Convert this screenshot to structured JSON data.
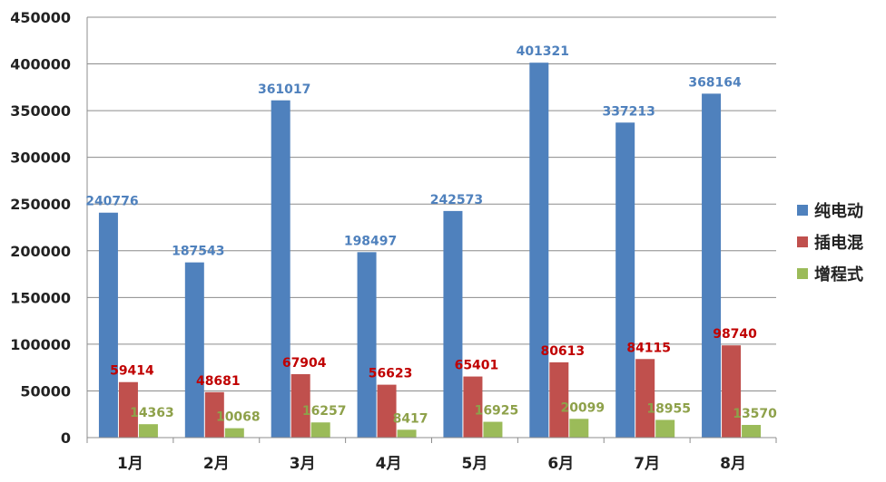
{
  "chart_data": {
    "type": "bar",
    "title": "",
    "xlabel": "",
    "ylabel": "",
    "categories": [
      "1月",
      "2月",
      "3月",
      "4月",
      "5月",
      "6月",
      "7月",
      "8月"
    ],
    "ylim": [
      0,
      450000
    ],
    "yticks": [
      "0",
      "50000",
      "100000",
      "150000",
      "200000",
      "250000",
      "300000",
      "350000",
      "400000",
      "450000"
    ],
    "grid": true,
    "legend_position": "right",
    "series": [
      {
        "name": "纯电动",
        "color": "#4f81bd",
        "label_color": "#4f81bd",
        "values": [
          240776,
          187543,
          361017,
          198497,
          242573,
          401321,
          337213,
          368164
        ]
      },
      {
        "name": "插电混",
        "color": "#c0504d",
        "label_color": "#c00000",
        "values": [
          59414,
          48681,
          67904,
          56623,
          65401,
          80613,
          84115,
          98740
        ]
      },
      {
        "name": "增程式",
        "color": "#9bbb59",
        "label_color": "#8ea14a",
        "values": [
          14363,
          10068,
          16257,
          8417,
          16925,
          20099,
          18955,
          13570
        ]
      }
    ]
  }
}
